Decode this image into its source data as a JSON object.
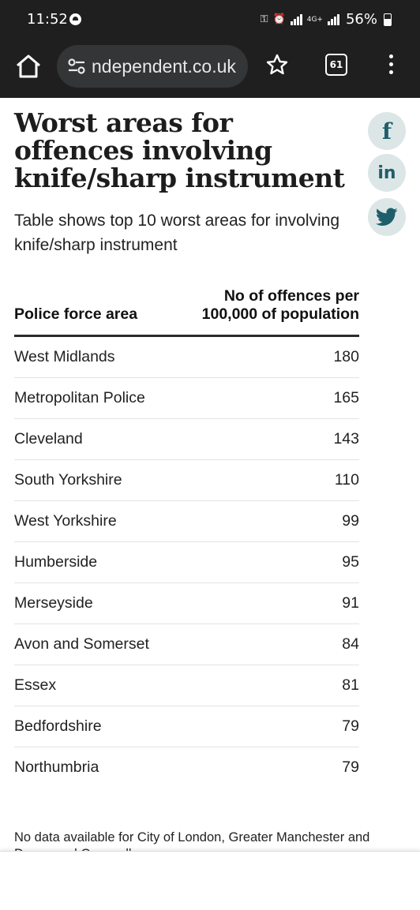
{
  "status_bar": {
    "time": "11:52",
    "battery": "56%",
    "network": "4G+"
  },
  "browser": {
    "url": "ndependent.co.uk",
    "tab_count": "61"
  },
  "article": {
    "title": "Worst areas for offences involving knife/sharp instrument",
    "subtitle": "Table shows top 10 worst areas for involving knife/sharp instrument",
    "table": {
      "headers": [
        "Police force area",
        "No of offences per 100,000 of population"
      ],
      "rows": [
        {
          "area": "West Midlands",
          "value": "180"
        },
        {
          "area": "Metropolitan Police",
          "value": "165"
        },
        {
          "area": "Cleveland",
          "value": "143"
        },
        {
          "area": "South Yorkshire",
          "value": "110"
        },
        {
          "area": "West Yorkshire",
          "value": "99"
        },
        {
          "area": "Humberside",
          "value": "95"
        },
        {
          "area": "Merseyside",
          "value": "91"
        },
        {
          "area": "Avon and Somerset",
          "value": "84"
        },
        {
          "area": "Essex",
          "value": "81"
        },
        {
          "area": "Bedfordshire",
          "value": "79"
        },
        {
          "area": "Northumbria",
          "value": "79"
        }
      ]
    },
    "footnote": "No data available for City of London, Greater Manchester and Devon and Cornwall"
  },
  "share": {
    "facebook": "f",
    "linkedin": "in",
    "twitter_icon": "twitter-icon"
  },
  "colors": {
    "browser_bar": "#1f1f1f",
    "share_bg": "#dde6e6",
    "share_fg": "#1f5e6b"
  }
}
